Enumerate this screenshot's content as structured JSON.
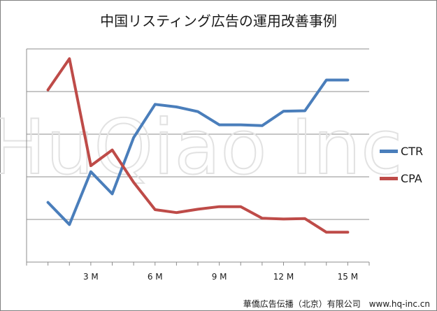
{
  "chart_data": {
    "type": "line",
    "title": "中国リスティング広告の運用改善事例",
    "xlabel": "",
    "ylabel": "",
    "x": [
      1,
      2,
      3,
      4,
      5,
      6,
      7,
      8,
      9,
      10,
      11,
      12,
      13,
      14,
      15
    ],
    "x_ticks": [
      {
        "x": 3,
        "label": "3 M"
      },
      {
        "x": 6,
        "label": "6 M"
      },
      {
        "x": 9,
        "label": "9 M"
      },
      {
        "x": 12,
        "label": "12 M"
      },
      {
        "x": 15,
        "label": "15 M"
      }
    ],
    "xlim": [
      0,
      16
    ],
    "ylim": [
      0,
      5
    ],
    "y_ticks_labeled": false,
    "grid": "horizontal",
    "legend": "right",
    "series": [
      {
        "name": "CTR",
        "color": "#4a7ebb",
        "values": [
          1.4,
          0.88,
          2.12,
          1.6,
          2.92,
          3.7,
          3.64,
          3.53,
          3.22,
          3.22,
          3.2,
          3.54,
          3.55,
          4.27,
          4.27
        ]
      },
      {
        "name": "CPA",
        "color": "#be4b48",
        "values": [
          4.04,
          4.77,
          2.26,
          2.63,
          1.87,
          1.23,
          1.16,
          1.24,
          1.3,
          1.3,
          1.03,
          1.01,
          1.02,
          0.7,
          0.7
        ]
      }
    ]
  },
  "watermark": {
    "text": "HuQiao Inc"
  },
  "footer": {
    "text": "華僑広告伝播（北京）有限公司　www.hq-inc.cn"
  }
}
